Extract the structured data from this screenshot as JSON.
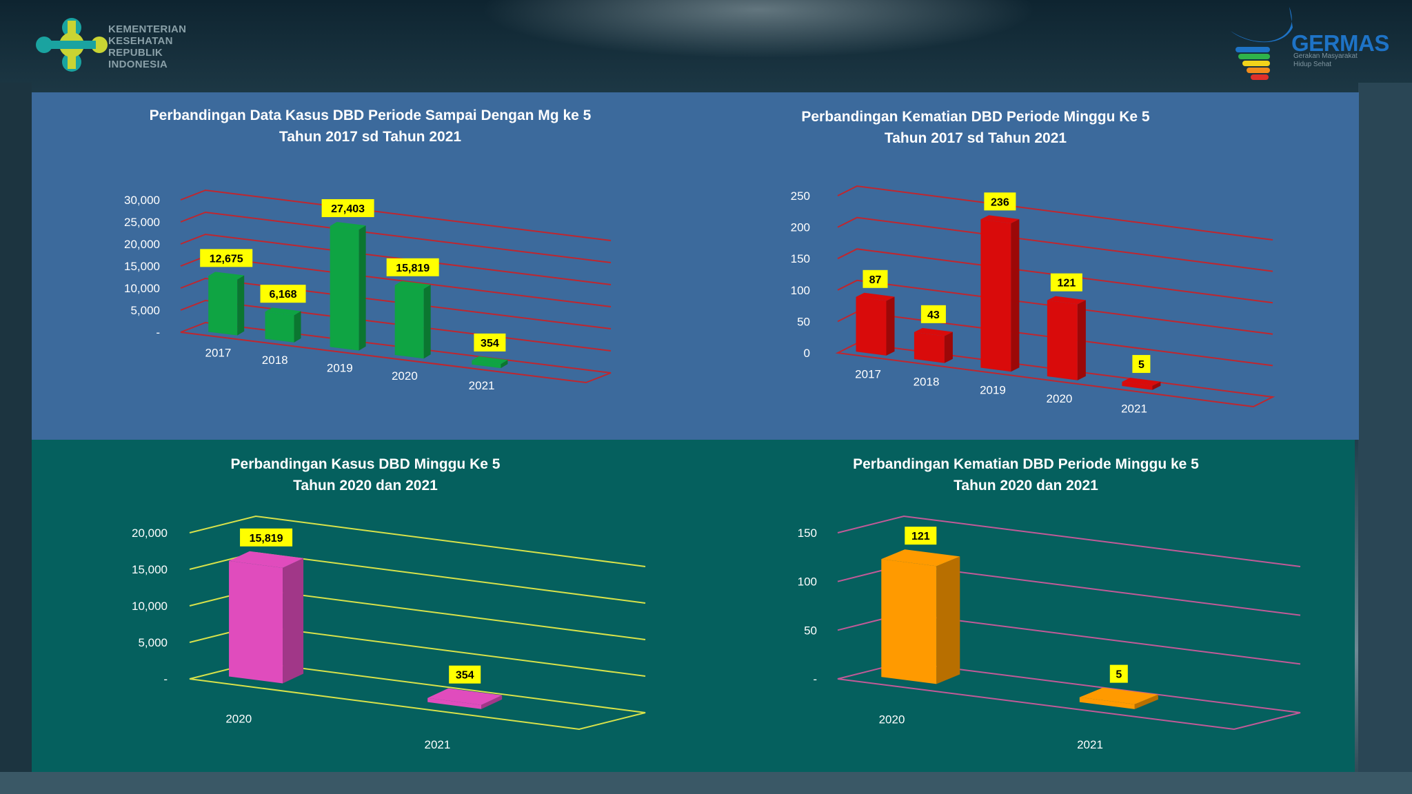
{
  "header": {
    "ministry_lines": [
      "KEMENTERIAN",
      "KESEHATAN",
      "REPUBLIK",
      "INDONESIA"
    ],
    "germas_title": "GERMAS",
    "germas_subtitle_lines": [
      "Gerakan Masyarakat",
      "Hidup Sehat"
    ]
  },
  "colors": {
    "top_panel": "#3c6a9c",
    "bottom_panel": "#05605e",
    "label_box": "#ffff00"
  },
  "chart_data": [
    {
      "type": "bar",
      "title_lines": [
        "Perbandingan Data Kasus DBD Periode Sampai  Dengan Mg ke 5",
        "Tahun 2017 sd Tahun 2021"
      ],
      "categories": [
        "2017",
        "2018",
        "2019",
        "2020",
        "2021"
      ],
      "values": [
        12675,
        6168,
        27403,
        15819,
        354
      ],
      "value_labels": [
        "12,675",
        "6,168",
        "27,403",
        "15,819",
        "354"
      ],
      "y_ticks": [
        "-",
        "5,000",
        "10,000",
        "15,000",
        "20,000",
        "25,000",
        "30,000"
      ],
      "ylim": [
        0,
        30000
      ],
      "bar_color": "#0fa443",
      "grid_color": "#c0262e",
      "xlabel": "",
      "ylabel": ""
    },
    {
      "type": "bar",
      "title_lines": [
        "Perbandingan Kematian DBD Periode Minggu Ke 5",
        "Tahun 2017 sd Tahun 2021"
      ],
      "categories": [
        "2017",
        "2018",
        "2019",
        "2020",
        "2021"
      ],
      "values": [
        87,
        43,
        236,
        121,
        5
      ],
      "value_labels": [
        "87",
        "43",
        "236",
        "121",
        "5"
      ],
      "y_ticks": [
        "0",
        "50",
        "100",
        "150",
        "200",
        "250"
      ],
      "ylim": [
        0,
        250
      ],
      "bar_color": "#d90b0b",
      "grid_color": "#c0262e",
      "xlabel": "",
      "ylabel": ""
    },
    {
      "type": "bar",
      "title_lines": [
        "Perbandingan Kasus DBD  Minggu Ke 5",
        "Tahun 2020 dan 2021"
      ],
      "categories": [
        "2020",
        "2021"
      ],
      "values": [
        15819,
        354
      ],
      "value_labels": [
        "15,819",
        "354"
      ],
      "y_ticks": [
        "-",
        "5,000",
        "10,000",
        "15,000",
        "20,000"
      ],
      "ylim": [
        0,
        20000
      ],
      "bar_color": "#e04cbd",
      "grid_color": "#d8e24a",
      "xlabel": "",
      "ylabel": ""
    },
    {
      "type": "bar",
      "title_lines": [
        "Perbandingan Kematian DBD  Periode Minggu ke 5",
        "Tahun 2020 dan 2021"
      ],
      "categories": [
        "2020",
        "2021"
      ],
      "values": [
        121,
        5
      ],
      "value_labels": [
        "121",
        "5"
      ],
      "y_ticks": [
        "-",
        "50",
        "100",
        "150"
      ],
      "ylim": [
        0,
        150
      ],
      "bar_color": "#ff9a00",
      "grid_color": "#c25a98",
      "xlabel": "",
      "ylabel": ""
    }
  ]
}
